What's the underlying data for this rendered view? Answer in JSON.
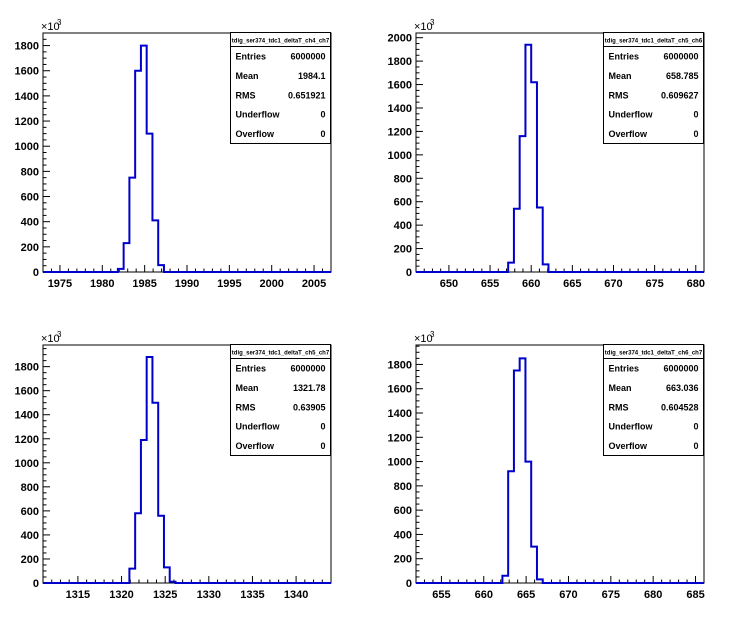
{
  "chart_data": [
    {
      "type": "histogram",
      "title": "",
      "xlim": [
        1973,
        2007
      ],
      "ylim": [
        0,
        1900
      ],
      "y_exponent_label": "×10",
      "y_exponent_power": "3",
      "x_ticks": [
        1975,
        1980,
        1985,
        1990,
        1995,
        2000,
        2005
      ],
      "y_ticks": [
        0,
        200,
        400,
        600,
        800,
        1000,
        1200,
        1400,
        1600,
        1800
      ],
      "bins": {
        "low": 1973,
        "high": 2007,
        "width": 0.68,
        "start_bin": 12,
        "counts": [
          0,
          25,
          230,
          750,
          1600,
          1800,
          1100,
          410,
          55,
          0
        ]
      },
      "stats": {
        "name": "tdig_ser374_tdc1_deltaT_ch4_ch7",
        "rows": [
          {
            "label": "Entries",
            "value": "6000000"
          },
          {
            "label": "Mean",
            "value": "1984.1"
          },
          {
            "label": "RMS",
            "value": "0.651921"
          },
          {
            "label": "Underflow",
            "value": "0"
          },
          {
            "label": "Overflow",
            "value": "0"
          }
        ]
      }
    },
    {
      "type": "histogram",
      "title": "",
      "xlim": [
        646,
        681
      ],
      "ylim": [
        0,
        2040
      ],
      "y_exponent_label": "×10",
      "y_exponent_power": "3",
      "x_ticks": [
        650,
        655,
        660,
        665,
        670,
        675,
        680
      ],
      "y_ticks": [
        0,
        200,
        400,
        600,
        800,
        1000,
        1200,
        1400,
        1600,
        1800,
        2000
      ],
      "bins": {
        "low": 646,
        "high": 681,
        "width": 0.7,
        "start_bin": 15,
        "counts": [
          0,
          80,
          540,
          1160,
          1940,
          1620,
          550,
          65,
          0
        ]
      },
      "stats": {
        "name": "tdig_ser374_tdc1_deltaT_ch5_ch6",
        "rows": [
          {
            "label": "Entries",
            "value": "6000000"
          },
          {
            "label": "Mean",
            "value": "658.785"
          },
          {
            "label": "RMS",
            "value": "0.609627"
          },
          {
            "label": "Underflow",
            "value": "0"
          },
          {
            "label": "Overflow",
            "value": "0"
          }
        ]
      }
    },
    {
      "type": "histogram",
      "title": "",
      "xlim": [
        1311,
        1344
      ],
      "ylim": [
        0,
        1980
      ],
      "y_exponent_label": "×10",
      "y_exponent_power": "3",
      "x_ticks": [
        1315,
        1320,
        1325,
        1330,
        1335,
        1340
      ],
      "y_ticks": [
        0,
        200,
        400,
        600,
        800,
        1000,
        1200,
        1400,
        1600,
        1800
      ],
      "bins": {
        "low": 1311,
        "high": 1344,
        "width": 0.66,
        "start_bin": 14,
        "counts": [
          0,
          120,
          580,
          1190,
          1880,
          1500,
          560,
          130,
          10,
          0
        ]
      },
      "stats": {
        "name": "tdig_ser374_tdc1_deltaT_ch5_ch7",
        "rows": [
          {
            "label": "Entries",
            "value": "6000000"
          },
          {
            "label": "Mean",
            "value": "1321.78"
          },
          {
            "label": "RMS",
            "value": "0.63905"
          },
          {
            "label": "Underflow",
            "value": "0"
          },
          {
            "label": "Overflow",
            "value": "0"
          }
        ]
      }
    },
    {
      "type": "histogram",
      "title": "",
      "xlim": [
        652,
        686
      ],
      "ylim": [
        0,
        1960
      ],
      "y_exponent_label": "×10",
      "y_exponent_power": "3",
      "x_ticks": [
        655,
        660,
        665,
        670,
        675,
        680,
        685
      ],
      "y_ticks": [
        0,
        200,
        400,
        600,
        800,
        1000,
        1200,
        1400,
        1600,
        1800
      ],
      "bins": {
        "low": 652,
        "high": 686,
        "width": 0.68,
        "start_bin": 14,
        "counts": [
          0,
          60,
          920,
          1750,
          1850,
          1000,
          300,
          30,
          0
        ]
      },
      "stats": {
        "name": "tdig_ser374_tdc1_deltaT_ch6_ch7",
        "rows": [
          {
            "label": "Entries",
            "value": "6000000"
          },
          {
            "label": "Mean",
            "value": "663.036"
          },
          {
            "label": "RMS",
            "value": "0.604528"
          },
          {
            "label": "Underflow",
            "value": "0"
          },
          {
            "label": "Overflow",
            "value": "0"
          }
        ]
      }
    }
  ]
}
